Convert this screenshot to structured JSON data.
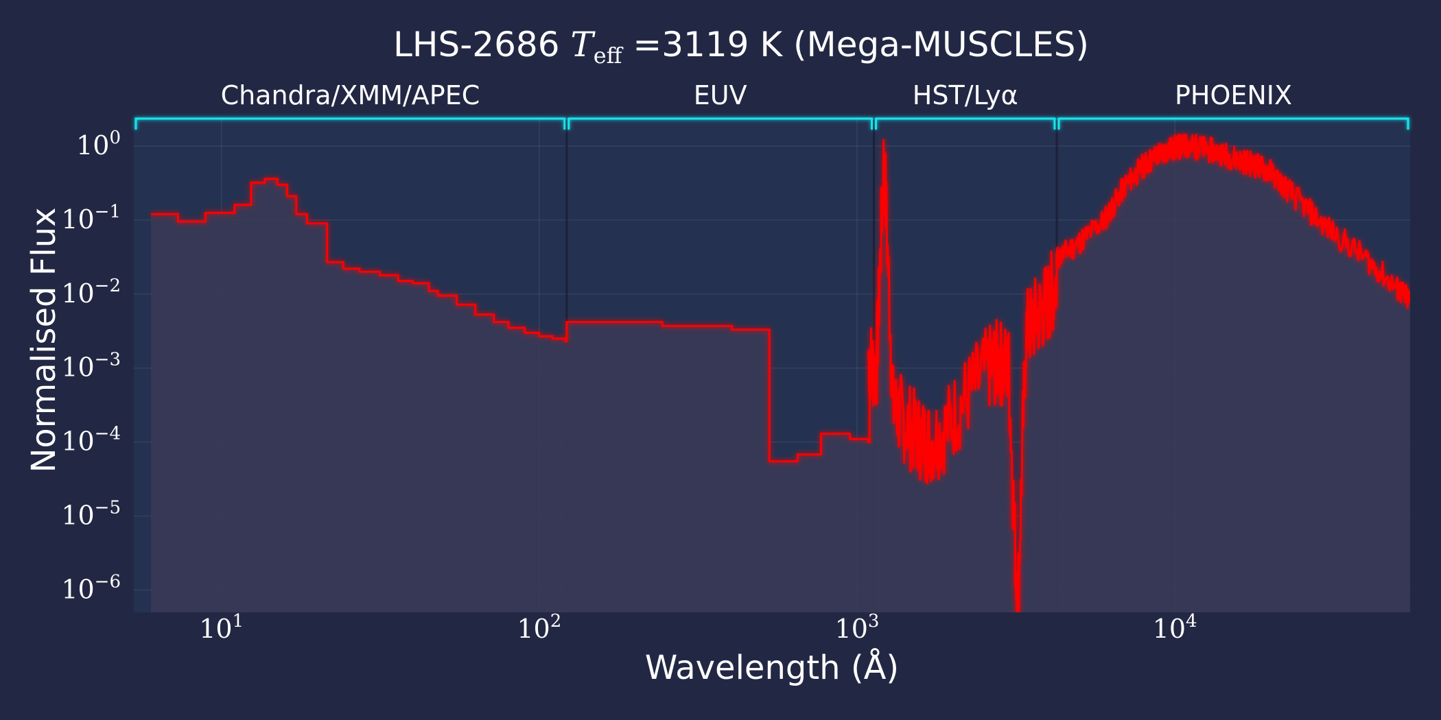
{
  "chart_data": {
    "type": "line",
    "title": {
      "prefix": "LHS-2686 ",
      "symbol": "T",
      "symbol_sub": "eff",
      "suffix": " =3119 K (Mega-MUSCLES)"
    },
    "xlabel": "Wavelength (Å)",
    "ylabel": "Normalised Flux",
    "x_scale": "log",
    "y_scale": "log",
    "xlim": [
      5.3,
      55000
    ],
    "ylim": [
      5e-07,
      2.5
    ],
    "x_ticks": [
      {
        "value": 10,
        "base": "10",
        "exp": "1"
      },
      {
        "value": 100,
        "base": "10",
        "exp": "2"
      },
      {
        "value": 1000,
        "base": "10",
        "exp": "3"
      },
      {
        "value": 10000,
        "base": "10",
        "exp": "4"
      }
    ],
    "y_ticks": [
      {
        "value": 1,
        "base": "10",
        "exp": "0"
      },
      {
        "value": 0.1,
        "base": "10",
        "exp": "−1"
      },
      {
        "value": 0.01,
        "base": "10",
        "exp": "−2"
      },
      {
        "value": 0.001,
        "base": "10",
        "exp": "−3"
      },
      {
        "value": 0.0001,
        "base": "10",
        "exp": "−4"
      },
      {
        "value": 1e-05,
        "base": "10",
        "exp": "−5"
      },
      {
        "value": 1e-06,
        "base": "10",
        "exp": "−6"
      }
    ],
    "grid": true,
    "regions": [
      {
        "label": "Chandra/XMM/APEC",
        "x_start": 5.3,
        "x_end": 122
      },
      {
        "label": "EUV",
        "x_start": 122,
        "x_end": 1130
      },
      {
        "label": "HST/Lyα",
        "x_start": 1130,
        "x_end": 4250
      },
      {
        "label": "PHOENIX",
        "x_start": 4250,
        "x_end": 55000
      }
    ],
    "series": [
      {
        "color": "#ff0000",
        "spectrum": {
          "x": [
            6,
            6.6,
            7.3,
            8.2,
            8.9,
            9.9,
            11,
            12.4,
            13.7,
            15,
            16.1,
            17.2,
            18.6,
            21.5,
            24.2,
            27.2,
            31.5,
            36,
            40,
            45,
            48,
            55,
            63,
            72,
            80,
            90,
            100,
            110,
            121
          ],
          "y": [
            0.12,
            0.12,
            0.095,
            0.095,
            0.125,
            0.125,
            0.16,
            0.32,
            0.36,
            0.3,
            0.21,
            0.12,
            0.09,
            0.027,
            0.022,
            0.02,
            0.018,
            0.015,
            0.014,
            0.011,
            0.0095,
            0.0072,
            0.0053,
            0.0042,
            0.0035,
            0.003,
            0.0027,
            0.0025,
            0.0023
          ],
          "x_euv": [
            122,
            240,
            244,
            400,
            404,
            520,
            530,
            640,
            650,
            760,
            770,
            945,
            950,
            1085,
            1095,
            1130
          ],
          "y_euv": [
            0.0042,
            0.0042,
            0.0037,
            0.0037,
            0.0033,
            0.0033,
            5.5e-05,
            5.5e-05,
            6.8e-05,
            6.8e-05,
            0.00013,
            0.00013,
            0.00011,
            0.0001,
            0.00048,
            0.00048
          ],
          "x_uv": [
            1085,
            1150,
            1216,
            1300,
            1400,
            1550,
            1700,
            1900,
            2200,
            2600,
            2800,
            3000,
            3200,
            3400,
            3700,
            4000,
            4250
          ],
          "y_uv": [
            0.0015,
            0.0008,
            0.8,
            0.0003,
            0.0002,
            0.00012,
            0.0001,
            0.00015,
            0.0004,
            0.001,
            0.0012,
            0.001,
            5e-07,
            0.003,
            0.005,
            0.008,
            0.015
          ],
          "x_opt": [
            4250,
            5000,
            6000,
            7000,
            8000,
            9000,
            10000,
            11000,
            12000,
            14000,
            16000,
            18000,
            20000,
            24000,
            30000,
            40000,
            50000,
            55000
          ],
          "y_opt": [
            0.03,
            0.05,
            0.1,
            0.3,
            0.55,
            0.8,
            0.95,
            1.0,
            0.95,
            0.8,
            0.65,
            0.55,
            0.45,
            0.2,
            0.08,
            0.03,
            0.012,
            0.008
          ]
        }
      }
    ]
  }
}
